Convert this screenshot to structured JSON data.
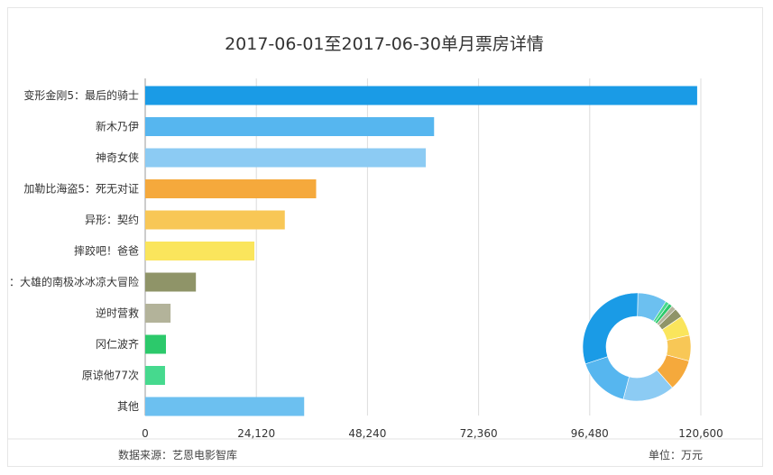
{
  "chart_data": {
    "type": "bar",
    "orientation": "horizontal",
    "title": "2017-06-01至2017-06-30单月票房详情",
    "categories": [
      "变形金刚5：最后的骑士",
      "新木乃伊",
      "神奇女侠",
      "加勒比海盗5：死无对证",
      "异形：契约",
      "摔跤吧！爸爸",
      "：大雄的南极冰冰凉大冒险",
      "逆时营救",
      "冈仁波齐",
      "原谅他77次",
      "其他"
    ],
    "values": [
      119800,
      62700,
      60900,
      37100,
      30300,
      23700,
      11000,
      5500,
      4500,
      4300,
      34500
    ],
    "colors": [
      "#1a9be6",
      "#56b6ef",
      "#8ccbf3",
      "#f5a93c",
      "#f8c756",
      "#fae55c",
      "#8f9468",
      "#b3b39a",
      "#2cc96b",
      "#46d98e",
      "#6cc0f0"
    ],
    "xlim": [
      0,
      120600
    ],
    "xticks": [
      "0",
      "24,120",
      "48,240",
      "72,360",
      "96,480",
      "120,600"
    ],
    "grid": true,
    "inset": {
      "type": "donut"
    }
  },
  "footer": {
    "source": "数据来源：艺恩电影智库",
    "unit": "单位：万元"
  }
}
